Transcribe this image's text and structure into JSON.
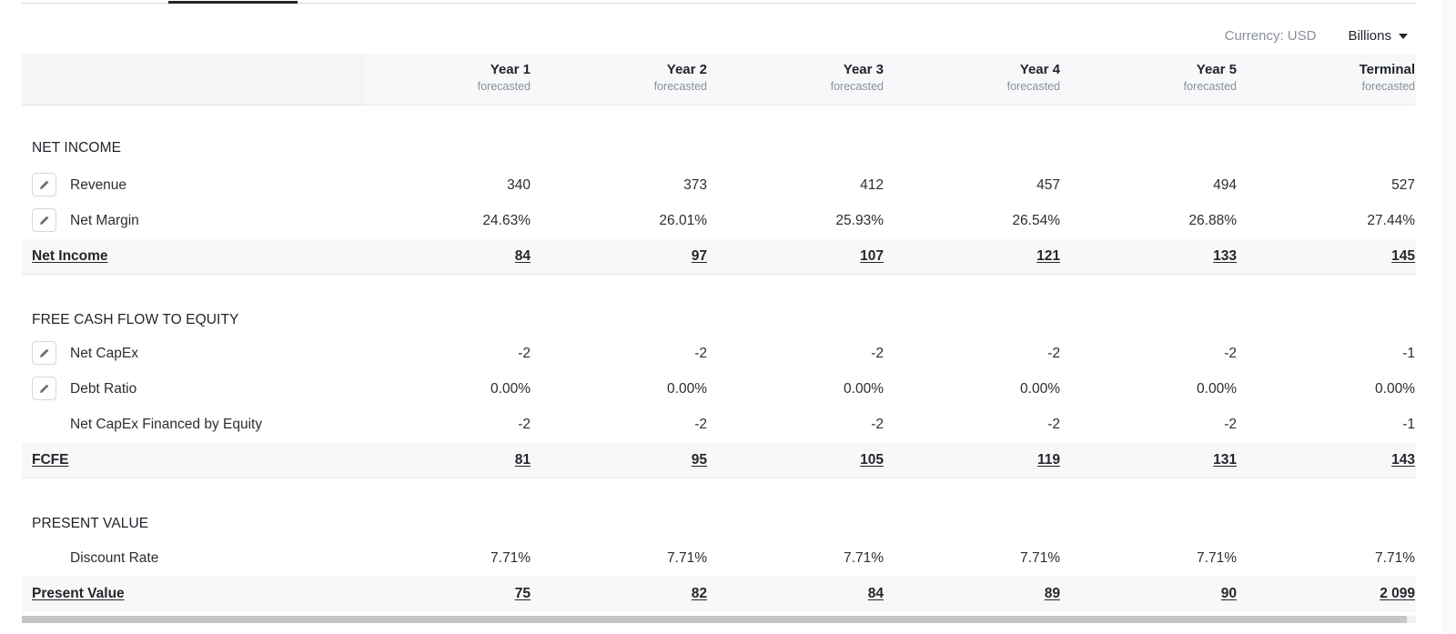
{
  "controls": {
    "currency_label": "Currency: USD",
    "units_value": "Billions"
  },
  "columns": [
    {
      "title": "Year 1",
      "subtitle": "forecasted"
    },
    {
      "title": "Year 2",
      "subtitle": "forecasted"
    },
    {
      "title": "Year 3",
      "subtitle": "forecasted"
    },
    {
      "title": "Year 4",
      "subtitle": "forecasted"
    },
    {
      "title": "Year 5",
      "subtitle": "forecasted"
    },
    {
      "title": "Terminal",
      "subtitle": "forecasted"
    }
  ],
  "sections": {
    "net_income": {
      "title": "NET INCOME",
      "revenue": {
        "label": "Revenue",
        "values": [
          "340",
          "373",
          "412",
          "457",
          "494",
          "527"
        ]
      },
      "net_margin": {
        "label": "Net Margin",
        "values": [
          "24.63%",
          "26.01%",
          "25.93%",
          "26.54%",
          "26.88%",
          "27.44%"
        ]
      },
      "total": {
        "label": "Net Income",
        "values": [
          "84",
          "97",
          "107",
          "121",
          "133",
          "145"
        ]
      }
    },
    "fcfe": {
      "title": "FREE CASH FLOW TO EQUITY",
      "net_capex": {
        "label": "Net CapEx",
        "values": [
          "-2",
          "-2",
          "-2",
          "-2",
          "-2",
          "-1"
        ]
      },
      "debt_ratio": {
        "label": "Debt Ratio",
        "values": [
          "0.00%",
          "0.00%",
          "0.00%",
          "0.00%",
          "0.00%",
          "0.00%"
        ]
      },
      "capex_financed": {
        "label": "Net CapEx Financed by Equity",
        "values": [
          "-2",
          "-2",
          "-2",
          "-2",
          "-2",
          "-1"
        ]
      },
      "total": {
        "label": "FCFE",
        "values": [
          "81",
          "95",
          "105",
          "119",
          "131",
          "143"
        ]
      }
    },
    "present_value": {
      "title": "PRESENT VALUE",
      "discount_rate": {
        "label": "Discount Rate",
        "values": [
          "7.71%",
          "7.71%",
          "7.71%",
          "7.71%",
          "7.71%",
          "7.71%"
        ]
      },
      "total": {
        "label": "Present Value",
        "values": [
          "75",
          "82",
          "84",
          "89",
          "90",
          "2 099"
        ]
      }
    }
  },
  "icons": {
    "edit": "pencil-icon",
    "units_dropdown": "caret-down-icon"
  },
  "colors": {
    "text": "#1f2329",
    "muted": "#8a9099",
    "header_bg": "#f7f8f9",
    "total_bg": "#f8f8f8"
  }
}
